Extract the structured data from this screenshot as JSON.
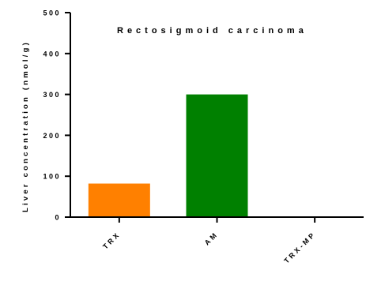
{
  "chart_data": {
    "type": "bar",
    "title": "Rectosigmoid carcinoma",
    "ylabel": "Liver concentration (nmol/g)",
    "xlabel": "",
    "categories": [
      "TRX",
      "AM",
      "TRX-MP"
    ],
    "values": [
      82,
      300,
      0
    ],
    "colors": [
      "#ff8000",
      "#008000",
      "#808080"
    ],
    "ylim": [
      0,
      500
    ],
    "yticks": [
      0,
      100,
      200,
      300,
      400,
      500
    ],
    "grid": false,
    "legend": "none"
  }
}
